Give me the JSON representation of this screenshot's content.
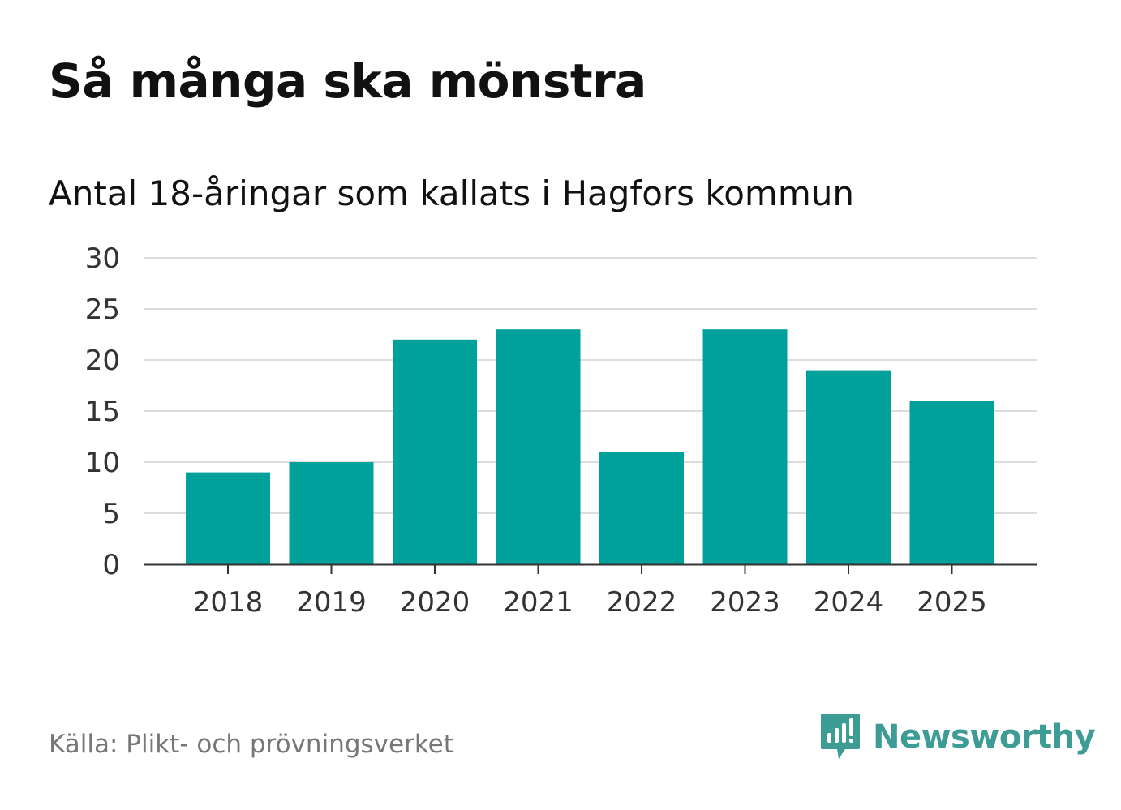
{
  "header": {
    "title": "Så många ska mönstra",
    "subtitle": "Antal 18-åringar som kallats i Hagfors kommun"
  },
  "footer": {
    "source": "Källa: Plikt- och prövningsverket",
    "brand_name": "Newsworthy",
    "brand_icon": "newsworthy-logo-icon"
  },
  "colors": {
    "bar": "#00a19a",
    "grid": "#dddddd",
    "axis": "#333333",
    "brand": "#3d9c93"
  },
  "chart_data": {
    "type": "bar",
    "title": "Så många ska mönstra",
    "subtitle": "Antal 18-åringar som kallats i Hagfors kommun",
    "xlabel": "",
    "ylabel": "",
    "categories": [
      "2018",
      "2019",
      "2020",
      "2021",
      "2022",
      "2023",
      "2024",
      "2025"
    ],
    "values": [
      9,
      10,
      22,
      23,
      11,
      23,
      19,
      16
    ],
    "ylim": [
      0,
      30
    ],
    "yticks": [
      0,
      5,
      10,
      15,
      20,
      25,
      30
    ],
    "grid": true,
    "legend": "none"
  }
}
